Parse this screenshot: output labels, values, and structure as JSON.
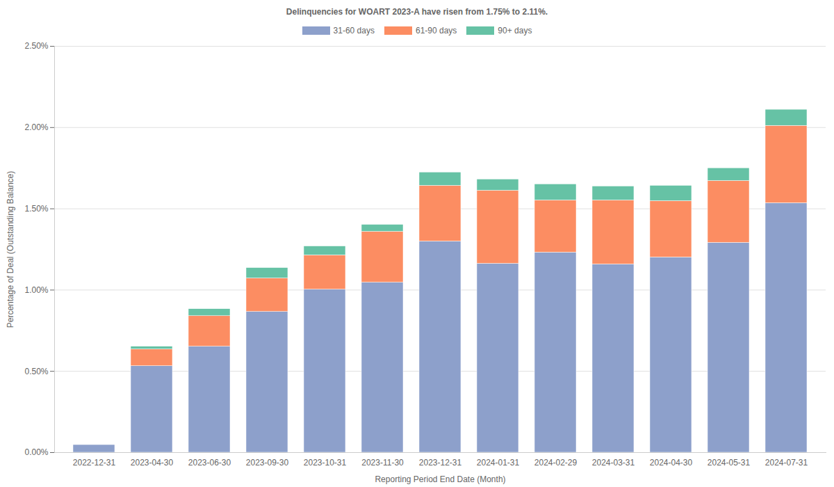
{
  "chart_data": {
    "type": "bar",
    "stacked": true,
    "grid": true,
    "legend": "top",
    "title": "Delinquencies for WOART 2023-A have risen from 1.75% to 2.11%.",
    "x_label": "Reporting Period End Date (Month)",
    "y_label": "Percentage of Deal (Outstanding Balance)",
    "categories": [
      "2022-12-31",
      "2023-04-30",
      "2023-06-30",
      "2023-09-30",
      "2023-10-31",
      "2023-11-30",
      "2023-12-31",
      "2024-01-31",
      "2024-02-29",
      "2024-03-31",
      "2024-04-30",
      "2024-05-31",
      "2024-07-31"
    ],
    "series": [
      {
        "name": "31-60 days",
        "color": "#8da0cb",
        "values": [
          0.047,
          0.532,
          0.652,
          0.866,
          1.003,
          1.046,
          1.299,
          1.162,
          1.231,
          1.158,
          1.201,
          1.291,
          1.535
        ]
      },
      {
        "name": "61-90 days",
        "color": "#fc8d62",
        "values": [
          0,
          0.103,
          0.188,
          0.206,
          0.211,
          0.313,
          0.343,
          0.45,
          0.321,
          0.394,
          0.347,
          0.381,
          0.476
        ]
      },
      {
        "name": "90+ days",
        "color": "#66c2a5",
        "values": [
          0,
          0.017,
          0.043,
          0.064,
          0.055,
          0.043,
          0.082,
          0.069,
          0.099,
          0.086,
          0.094,
          0.078,
          0.099
        ]
      }
    ],
    "ylim": [
      0,
      2.5
    ],
    "yticks": [
      {
        "value": 0,
        "label": "0.00%"
      },
      {
        "value": 0.5,
        "label": "0.50%"
      },
      {
        "value": 1,
        "label": "1.00%"
      },
      {
        "value": 1.5,
        "label": "1.50%"
      },
      {
        "value": 2,
        "label": "2.00%"
      },
      {
        "value": 2.5,
        "label": "2.50%"
      }
    ]
  }
}
